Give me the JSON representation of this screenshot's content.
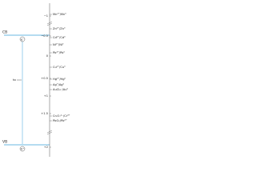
{
  "bands": {
    "cb": "CB",
    "vb": "VB"
  },
  "carriers": {
    "electron": "e⁻",
    "hole": "h⁺"
  },
  "excitation": "hν",
  "axis_ticks": [
    "−1",
    "−0.5",
    "0",
    "+0.5",
    "+1",
    "+1.5",
    "+2"
  ],
  "couples": [
    "Mn²⁺/Mn⁰",
    "Zn²⁺/Zn⁰",
    "Cd²⁺/Cd⁰",
    "Ni²⁺/Ni⁰",
    "Pb²⁺/Pb⁰",
    "Cu²⁺/Cu⁰",
    "Hg²⁺/Hg⁰",
    "Ag⁺/Ag⁰",
    "AuCl₄⁻/Au⁰",
    "Cr₂O₇²⁻/Cr³⁺",
    "PbO₂/Pb²⁺"
  ]
}
